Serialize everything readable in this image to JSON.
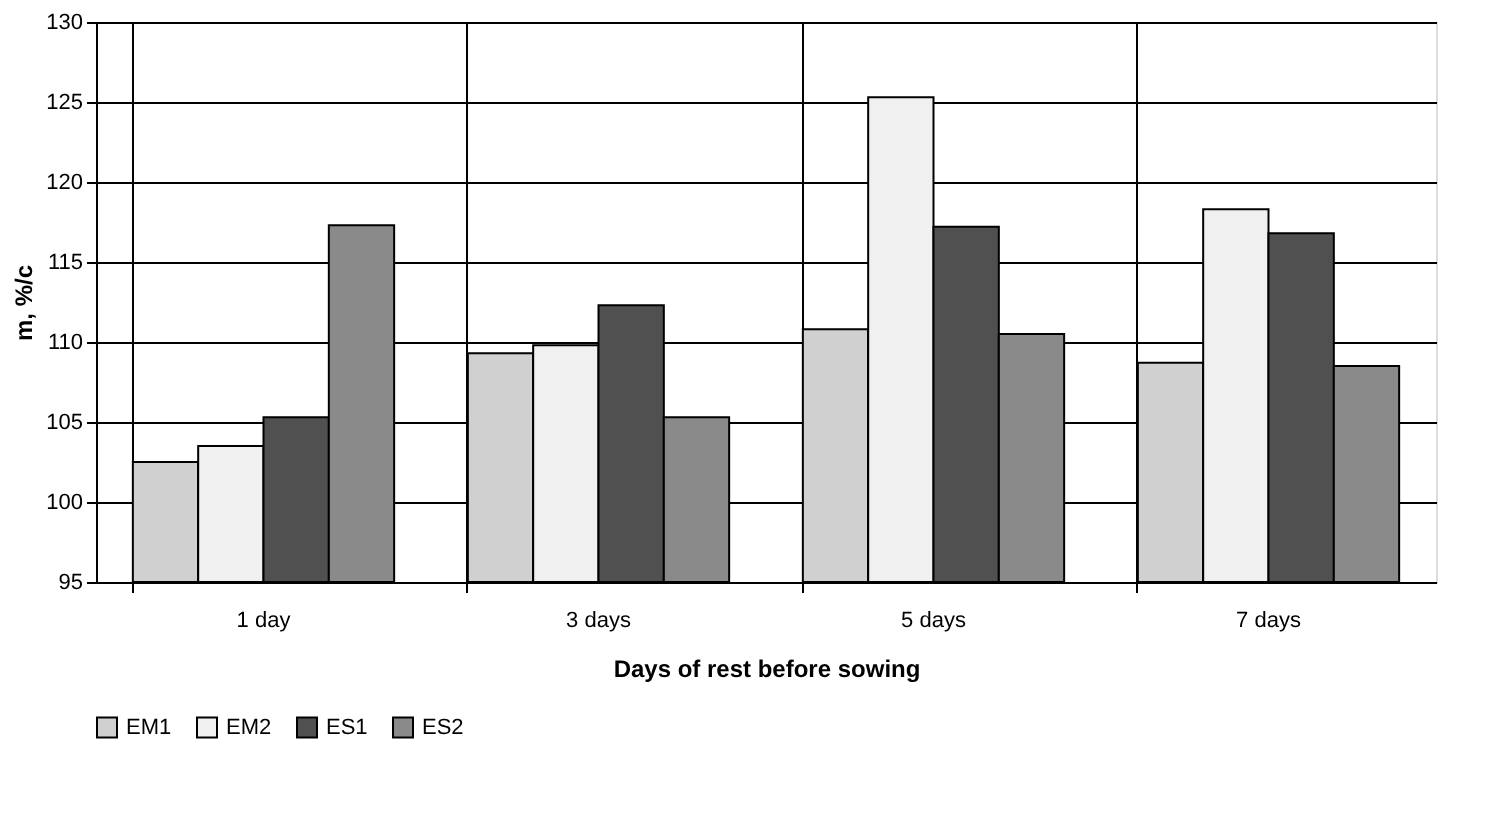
{
  "chart_data": {
    "type": "bar",
    "xlabel": "Days of rest before sowing",
    "ylabel": "m, %/c",
    "categories": [
      "1 day",
      "3 days",
      "5 days",
      "7 days"
    ],
    "series": [
      {
        "name": "EM1",
        "color": "#d0d0d0",
        "values": [
          102.5,
          109.3,
          110.8,
          108.7
        ]
      },
      {
        "name": "EM2",
        "color": "#f0f0f0",
        "values": [
          103.5,
          109.8,
          125.3,
          118.3
        ]
      },
      {
        "name": "ES1",
        "color": "#505050",
        "values": [
          105.3,
          112.3,
          117.2,
          116.8
        ]
      },
      {
        "name": "ES2",
        "color": "#8a8a8a",
        "values": [
          117.3,
          105.3,
          110.5,
          108.5
        ]
      }
    ],
    "ylim": [
      95,
      130
    ],
    "yticks": [
      95,
      100,
      105,
      110,
      115,
      120,
      125,
      130
    ],
    "grid": true,
    "legend": "bottom"
  }
}
